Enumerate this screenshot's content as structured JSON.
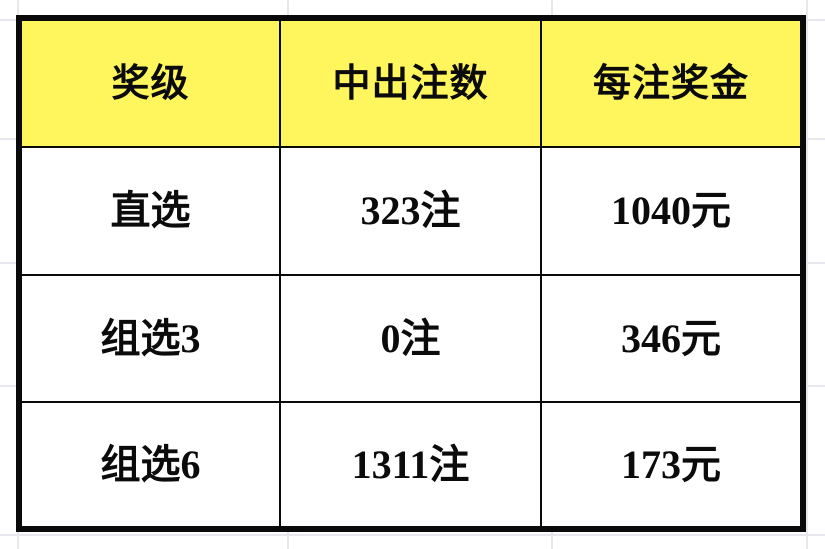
{
  "colors": {
    "page_bg": "#ffffff",
    "gridline": "#e7e7ee",
    "header_bg": "#fff55c",
    "table_border": "#0a0a0a",
    "text": "#0b0b0b"
  },
  "prize_table": {
    "headers": [
      "奖级",
      "中出注数",
      "每注奖金"
    ],
    "rows": [
      {
        "level": "直选",
        "bets": "323注",
        "prize": "1040元"
      },
      {
        "level": "组选3",
        "bets": "0注",
        "prize": "346元"
      },
      {
        "level": "组选6",
        "bets": "1311注",
        "prize": "173元"
      }
    ]
  },
  "chart_data": {
    "type": "table",
    "title": "",
    "columns": [
      "奖级",
      "中出注数",
      "每注奖金"
    ],
    "rows": [
      [
        "直选",
        "323注",
        "1040元"
      ],
      [
        "组选3",
        "0注",
        "346元"
      ],
      [
        "组选6",
        "1311注",
        "173元"
      ]
    ],
    "numeric": {
      "winning_bets": [
        323,
        0,
        1311
      ],
      "prize_per_bet_yuan": [
        1040,
        346,
        173
      ]
    }
  }
}
